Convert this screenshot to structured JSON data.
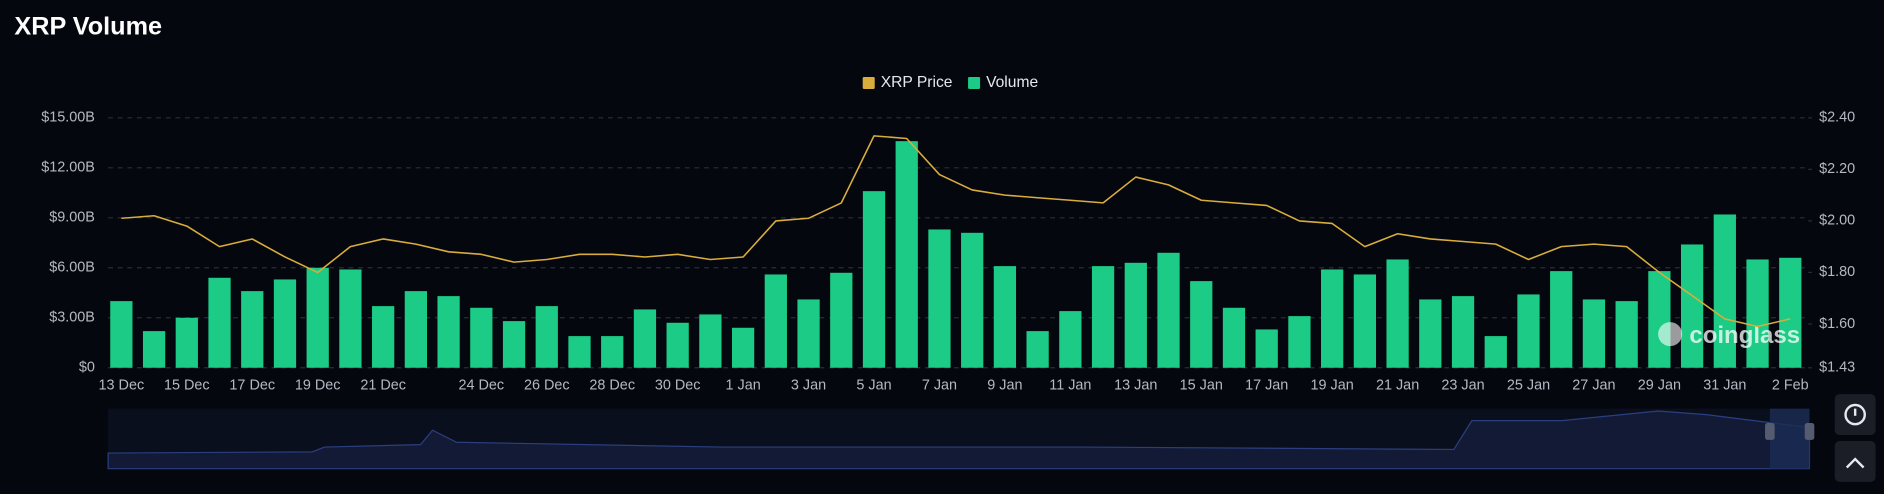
{
  "chart_data": {
    "type": "bar_line",
    "title": "XRP Volume",
    "watermark": "coinglass",
    "categories": [
      "13 Dec",
      null,
      "15 Dec",
      null,
      "17 Dec",
      null,
      "19 Dec",
      null,
      "21 Dec",
      null,
      null,
      "24 Dec",
      null,
      "26 Dec",
      null,
      "28 Dec",
      null,
      "30 Dec",
      null,
      "1 Jan",
      null,
      "3 Jan",
      null,
      "5 Jan",
      null,
      "7 Jan",
      null,
      "9 Jan",
      null,
      "11 Jan",
      null,
      "13 Jan",
      null,
      "15 Jan",
      null,
      "17 Jan",
      null,
      "19 Jan",
      null,
      "21 Jan",
      null,
      "23 Jan",
      null,
      "25 Jan",
      null,
      "27 Jan",
      null,
      "29 Jan",
      null,
      "31 Jan",
      null,
      "2 Feb"
    ],
    "series": [
      {
        "name": "XRP Price",
        "color": "#d9ad3c",
        "axis": "y2",
        "kind": "line",
        "values": [
          2.01,
          2.02,
          1.98,
          1.9,
          1.93,
          1.86,
          1.8,
          1.9,
          1.93,
          1.91,
          1.88,
          1.87,
          1.84,
          1.85,
          1.87,
          1.87,
          1.86,
          1.87,
          1.85,
          1.86,
          2.0,
          2.01,
          2.07,
          2.33,
          2.32,
          2.18,
          2.12,
          2.1,
          2.09,
          2.08,
          2.07,
          2.17,
          2.14,
          2.08,
          2.07,
          2.06,
          2.0,
          1.99,
          1.9,
          1.95,
          1.93,
          1.92,
          1.91,
          1.85,
          1.9,
          1.91,
          1.9,
          1.8,
          1.71,
          1.62,
          1.59,
          1.62
        ]
      },
      {
        "name": "Volume",
        "color": "#1ccb85",
        "kind": "bar",
        "values": [
          4.0,
          2.2,
          3.0,
          5.4,
          4.6,
          5.3,
          6.0,
          5.9,
          3.7,
          4.6,
          4.3,
          3.6,
          2.8,
          3.7,
          1.9,
          1.9,
          3.5,
          2.7,
          3.2,
          2.4,
          5.6,
          4.1,
          5.7,
          10.6,
          13.6,
          8.3,
          8.1,
          6.1,
          2.2,
          3.4,
          6.1,
          6.3,
          6.9,
          5.2,
          3.6,
          2.3,
          3.1,
          5.9,
          5.6,
          6.5,
          4.1,
          4.3,
          1.9,
          4.4,
          5.8,
          4.1,
          4.0,
          5.8,
          7.4,
          9.2,
          6.5,
          6.6
        ]
      }
    ],
    "ylim": [
      0,
      15
    ],
    "yticks": [
      {
        "value": 0,
        "label": "$0"
      },
      {
        "value": 3,
        "label": "$3.00B"
      },
      {
        "value": 6,
        "label": "$6.00B"
      },
      {
        "value": 9,
        "label": "$9.00B"
      },
      {
        "value": 12,
        "label": "$12.00B"
      },
      {
        "value": 15,
        "label": "$15.00B"
      }
    ],
    "y2lim": [
      1.43,
      2.4
    ],
    "y2ticks": [
      {
        "value": 1.43,
        "label": "$1.43"
      },
      {
        "value": 1.6,
        "label": "$1.60"
      },
      {
        "value": 1.8,
        "label": "$1.80"
      },
      {
        "value": 2.0,
        "label": "$2.00"
      },
      {
        "value": 2.2,
        "label": "$2.20"
      },
      {
        "value": 2.4,
        "label": "$2.40"
      }
    ],
    "grid": true,
    "legend": "top"
  }
}
